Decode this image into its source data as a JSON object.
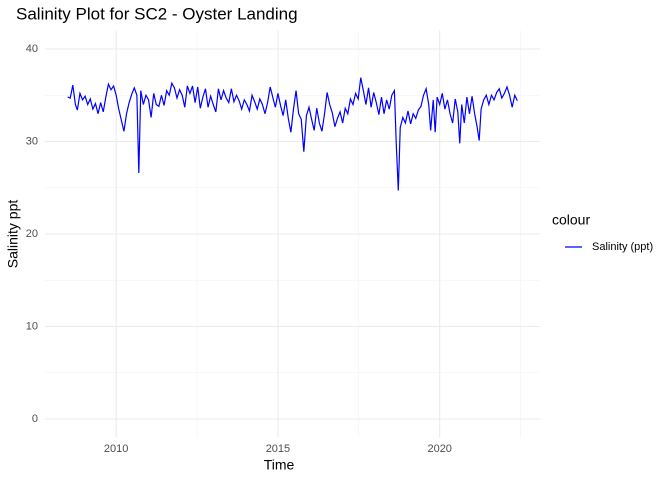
{
  "chart_data": {
    "type": "line",
    "title": "Salinity Plot for SC2 - Oyster Landing",
    "x_label": "Time",
    "y_label": "Salinity ppt",
    "legend_title": "colour",
    "legend_position": "right",
    "grid": true,
    "xlim": [
      2007.8,
      2023.1
    ],
    "xticks": [
      2010,
      2015,
      2020
    ],
    "minor_xticks": [
      2007.5,
      2012.5,
      2017.5,
      2022.5
    ],
    "ylim": [
      -2,
      42
    ],
    "yticks": [
      0,
      10,
      20,
      30,
      40
    ],
    "minor_yticks": [
      5,
      15,
      25,
      35
    ],
    "x": [
      2008.5,
      2008.58,
      2008.66,
      2008.74,
      2008.8,
      2008.88,
      2008.96,
      2009.04,
      2009.12,
      2009.2,
      2009.28,
      2009.36,
      2009.44,
      2009.52,
      2009.6,
      2009.68,
      2009.76,
      2009.84,
      2009.92,
      2010.0,
      2010.08,
      2010.16,
      2010.24,
      2010.32,
      2010.4,
      2010.48,
      2010.56,
      2010.64,
      2010.7,
      2010.76,
      2010.84,
      2010.92,
      2011.0,
      2011.08,
      2011.16,
      2011.24,
      2011.32,
      2011.4,
      2011.48,
      2011.56,
      2011.64,
      2011.72,
      2011.8,
      2011.88,
      2011.96,
      2012.04,
      2012.12,
      2012.2,
      2012.28,
      2012.36,
      2012.44,
      2012.52,
      2012.6,
      2012.68,
      2012.76,
      2012.84,
      2012.92,
      2013.0,
      2013.08,
      2013.16,
      2013.24,
      2013.32,
      2013.4,
      2013.48,
      2013.56,
      2013.64,
      2013.72,
      2013.8,
      2013.88,
      2013.96,
      2014.04,
      2014.12,
      2014.2,
      2014.28,
      2014.36,
      2014.44,
      2014.52,
      2014.6,
      2014.68,
      2014.76,
      2014.84,
      2014.92,
      2015.0,
      2015.08,
      2015.16,
      2015.24,
      2015.32,
      2015.4,
      2015.48,
      2015.56,
      2015.64,
      2015.72,
      2015.8,
      2015.88,
      2015.96,
      2016.04,
      2016.12,
      2016.2,
      2016.28,
      2016.36,
      2016.44,
      2016.52,
      2016.6,
      2016.68,
      2016.76,
      2016.84,
      2016.92,
      2017.0,
      2017.08,
      2017.16,
      2017.24,
      2017.32,
      2017.4,
      2017.48,
      2017.56,
      2017.64,
      2017.72,
      2017.8,
      2017.88,
      2017.96,
      2018.04,
      2018.12,
      2018.2,
      2018.28,
      2018.36,
      2018.44,
      2018.52,
      2018.6,
      2018.66,
      2018.72,
      2018.78,
      2018.86,
      2018.94,
      2019.02,
      2019.1,
      2019.18,
      2019.26,
      2019.34,
      2019.42,
      2019.5,
      2019.58,
      2019.66,
      2019.72,
      2019.8,
      2019.86,
      2019.92,
      2020.0,
      2020.08,
      2020.16,
      2020.24,
      2020.32,
      2020.4,
      2020.48,
      2020.56,
      2020.62,
      2020.68,
      2020.76,
      2020.84,
      2020.92,
      2021.0,
      2021.08,
      2021.16,
      2021.22,
      2021.28,
      2021.36,
      2021.44,
      2021.52,
      2021.6,
      2021.68,
      2021.76,
      2021.84,
      2021.92,
      2022.0,
      2022.08,
      2022.16,
      2022.24,
      2022.32,
      2022.4
    ],
    "series": [
      {
        "name": "Salinity (ppt)",
        "color": "#0000ff",
        "values": [
          34.8,
          34.7,
          36.1,
          34.0,
          33.4,
          35.2,
          34.5,
          34.9,
          34.0,
          34.6,
          33.5,
          34.1,
          33.0,
          34.2,
          33.2,
          34.8,
          36.2,
          35.6,
          36.0,
          35.0,
          33.5,
          32.3,
          31.1,
          33.0,
          34.2,
          35.1,
          35.8,
          35.0,
          26.6,
          35.5,
          34.0,
          35.0,
          34.5,
          32.6,
          35.2,
          34.0,
          33.8,
          35.0,
          33.9,
          35.5,
          35.0,
          36.3,
          35.8,
          34.7,
          35.6,
          35.0,
          33.7,
          36.0,
          35.2,
          36.0,
          34.2,
          35.9,
          33.6,
          34.8,
          35.7,
          33.7,
          34.9,
          34.0,
          33.2,
          35.7,
          34.5,
          35.5,
          34.7,
          34.2,
          35.7,
          34.3,
          35.0,
          34.4,
          33.5,
          34.5,
          34.0,
          33.3,
          35.0,
          34.3,
          33.5,
          34.6,
          34.0,
          33.0,
          34.2,
          35.9,
          34.8,
          33.7,
          35.2,
          33.9,
          32.8,
          34.5,
          32.5,
          31.0,
          33.5,
          35.5,
          33.0,
          32.4,
          28.9,
          32.8,
          33.7,
          32.4,
          31.2,
          33.6,
          32.0,
          31.1,
          33.0,
          35.3,
          34.0,
          33.1,
          31.6,
          32.5,
          33.2,
          32.0,
          33.6,
          33.0,
          34.6,
          34.0,
          35.2,
          34.6,
          36.9,
          35.5,
          34.0,
          35.8,
          33.7,
          35.3,
          34.2,
          32.9,
          34.8,
          33.0,
          34.5,
          33.5,
          35.0,
          35.5,
          29.5,
          24.7,
          31.5,
          32.6,
          32.0,
          33.3,
          31.9,
          33.0,
          32.5,
          33.4,
          33.8,
          35.0,
          35.7,
          34.0,
          31.2,
          34.5,
          31.0,
          34.8,
          34.0,
          35.2,
          33.5,
          34.5,
          33.0,
          32.0,
          34.6,
          33.2,
          29.8,
          34.0,
          32.0,
          34.8,
          33.0,
          34.9,
          33.0,
          31.5,
          30.1,
          33.5,
          34.5,
          35.0,
          34.0,
          35.0,
          34.5,
          35.3,
          35.7,
          34.7,
          35.2,
          35.9,
          35.0,
          33.7,
          35.0,
          34.4
        ]
      }
    ]
  }
}
